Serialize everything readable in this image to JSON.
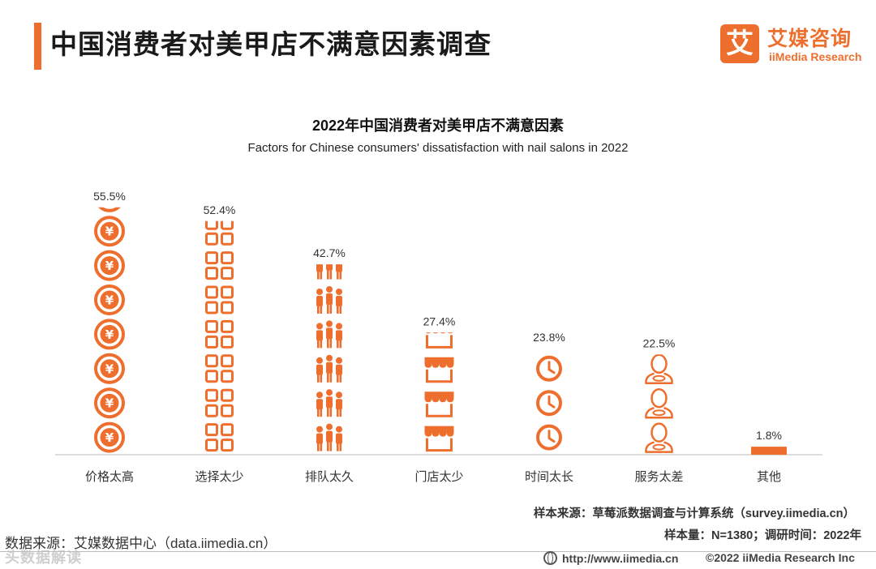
{
  "header": {
    "title": "中国消费者对美甲店不满意因素调查",
    "logo_mark": "艾",
    "logo_cn": "艾媒咨询",
    "logo_en": "iiMedia Research"
  },
  "chart_data": {
    "type": "bar",
    "title": "2022年中国消费者对美甲店不满意因素",
    "subtitle": "Factors for Chinese consumers' dissatisfaction with nail salons in 2022",
    "categories": [
      "价格太高",
      "选择太少",
      "排队太久",
      "门店太少",
      "时间太长",
      "服务太差",
      "其他"
    ],
    "values": [
      55.5,
      52.4,
      42.7,
      27.4,
      23.8,
      22.5,
      1.8
    ],
    "value_labels": [
      "55.5%",
      "52.4%",
      "42.7%",
      "27.4%",
      "23.8%",
      "22.5%",
      "1.8%"
    ],
    "icons": [
      "yuan-coin-icon",
      "grid-squares-icon",
      "people-queue-icon",
      "storefront-icon",
      "clock-icon",
      "person-bust-icon",
      "bar"
    ],
    "unit": "%",
    "ylim": [
      0,
      60
    ],
    "color": "#ee6f2d"
  },
  "footer": {
    "sample_source": "样本来源：草莓派数据调查与计算系统（survey.iimedia.cn）",
    "sample_size": "样本量：N=1380；调研时间：2022年",
    "data_source": "数据来源：艾媒数据中心（data.iimedia.cn）",
    "url": "http://www.iimedia.cn",
    "copyright": "©2022  iiMedia Research  Inc",
    "watermark": "头数据解读"
  }
}
